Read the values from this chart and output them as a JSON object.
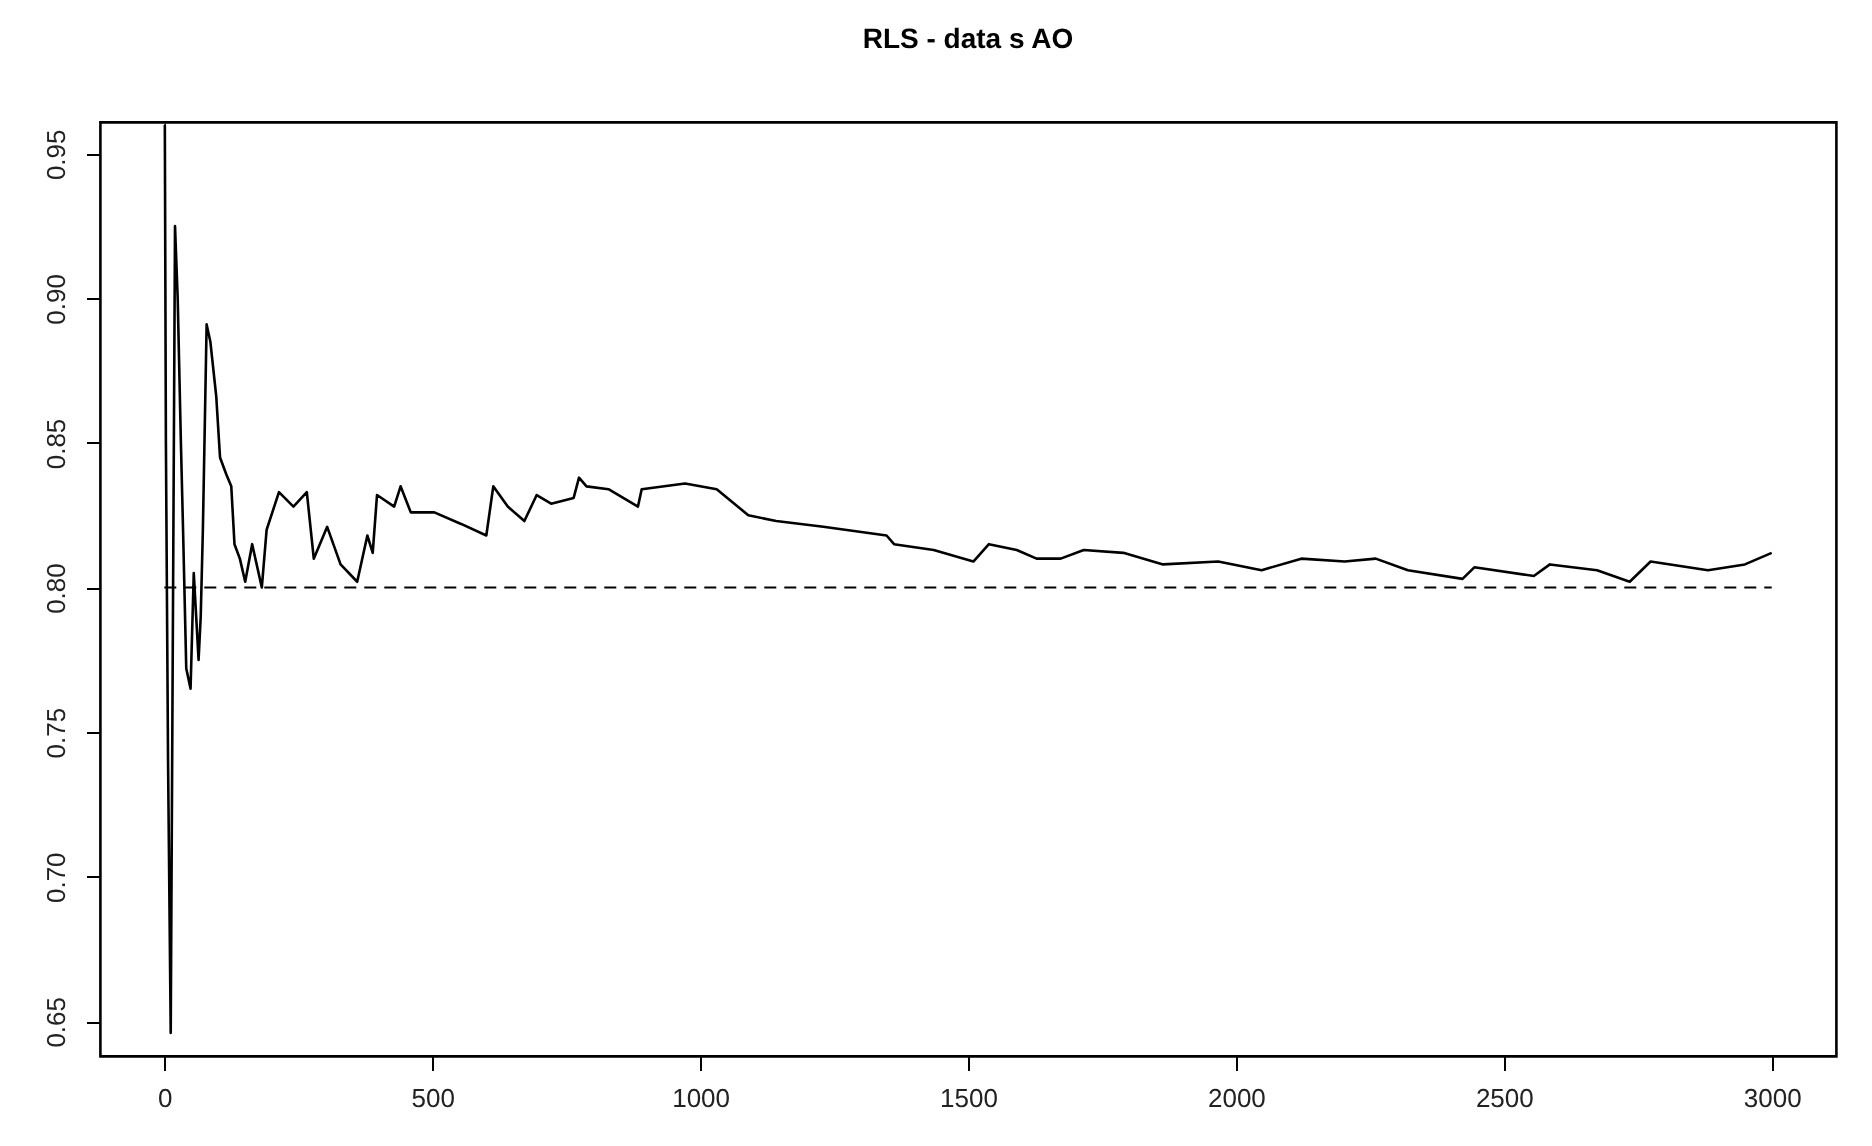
{
  "chart_data": {
    "type": "line",
    "title": "RLS - data s AO",
    "x": [
      0,
      1,
      3,
      7,
      12,
      20,
      25,
      31,
      35,
      41,
      49,
      55,
      64,
      68,
      72,
      79,
      86,
      97,
      104,
      116,
      125,
      131,
      141,
      151,
      164,
      182,
      191,
      214,
      241,
      266,
      279,
      304,
      329,
      360,
      379,
      389,
      397,
      429,
      441,
      460,
      504,
      554,
      601,
      614,
      641,
      672,
      695,
      722,
      764,
      774,
      788,
      829,
      884,
      891,
      972,
      1031,
      1090,
      1142,
      1230,
      1348,
      1362,
      1436,
      1510,
      1539,
      1591,
      1628,
      1673,
      1716,
      1790,
      1864,
      1967,
      2048,
      2122,
      2203,
      2261,
      2321,
      2423,
      2445,
      2556,
      2586,
      2674,
      2735,
      2774,
      2881,
      2950,
      3000
    ],
    "series": [
      {
        "color": "#000000",
        "values": [
          0.96,
          0.96,
          0.85,
          0.74,
          0.646,
          0.925,
          0.9,
          0.85,
          0.82,
          0.772,
          0.765,
          0.805,
          0.775,
          0.79,
          0.82,
          0.891,
          0.885,
          0.866,
          0.845,
          0.839,
          0.835,
          0.815,
          0.81,
          0.802,
          0.815,
          0.8,
          0.82,
          0.833,
          0.828,
          0.833,
          0.81,
          0.821,
          0.808,
          0.802,
          0.818,
          0.812,
          0.832,
          0.828,
          0.835,
          0.826,
          0.826,
          0.822,
          0.818,
          0.835,
          0.828,
          0.823,
          0.832,
          0.829,
          0.831,
          0.838,
          0.835,
          0.834,
          0.828,
          0.834,
          0.836,
          0.834,
          0.825,
          0.823,
          0.821,
          0.818,
          0.815,
          0.813,
          0.809,
          0.815,
          0.813,
          0.81,
          0.81,
          0.813,
          0.812,
          0.808,
          0.809,
          0.806,
          0.81,
          0.809,
          0.81,
          0.806,
          0.803,
          0.807,
          0.804,
          0.808,
          0.806,
          0.802,
          0.809,
          0.806,
          0.808,
          0.812
        ]
      }
    ],
    "xlim": [
      -120,
      3120
    ],
    "ylim": [
      0.638,
      0.961
    ],
    "xticks": [
      0,
      500,
      1000,
      1500,
      2000,
      2500,
      3000
    ],
    "yticks": [
      {
        "value": 0.65,
        "label": "0.65"
      },
      {
        "value": 0.7,
        "label": "0.70"
      },
      {
        "value": 0.75,
        "label": "0.75"
      },
      {
        "value": 0.8,
        "label": "0.80"
      },
      {
        "value": 0.85,
        "label": "0.85"
      },
      {
        "value": 0.9,
        "label": "0.90"
      },
      {
        "value": 0.95,
        "label": "0.95"
      }
    ],
    "ref_lines": [
      {
        "axis": "y",
        "value": 0.8,
        "color": "#000000",
        "line_style": "dashed"
      }
    ],
    "marker": "none",
    "line_style": "solid",
    "grid": false
  }
}
